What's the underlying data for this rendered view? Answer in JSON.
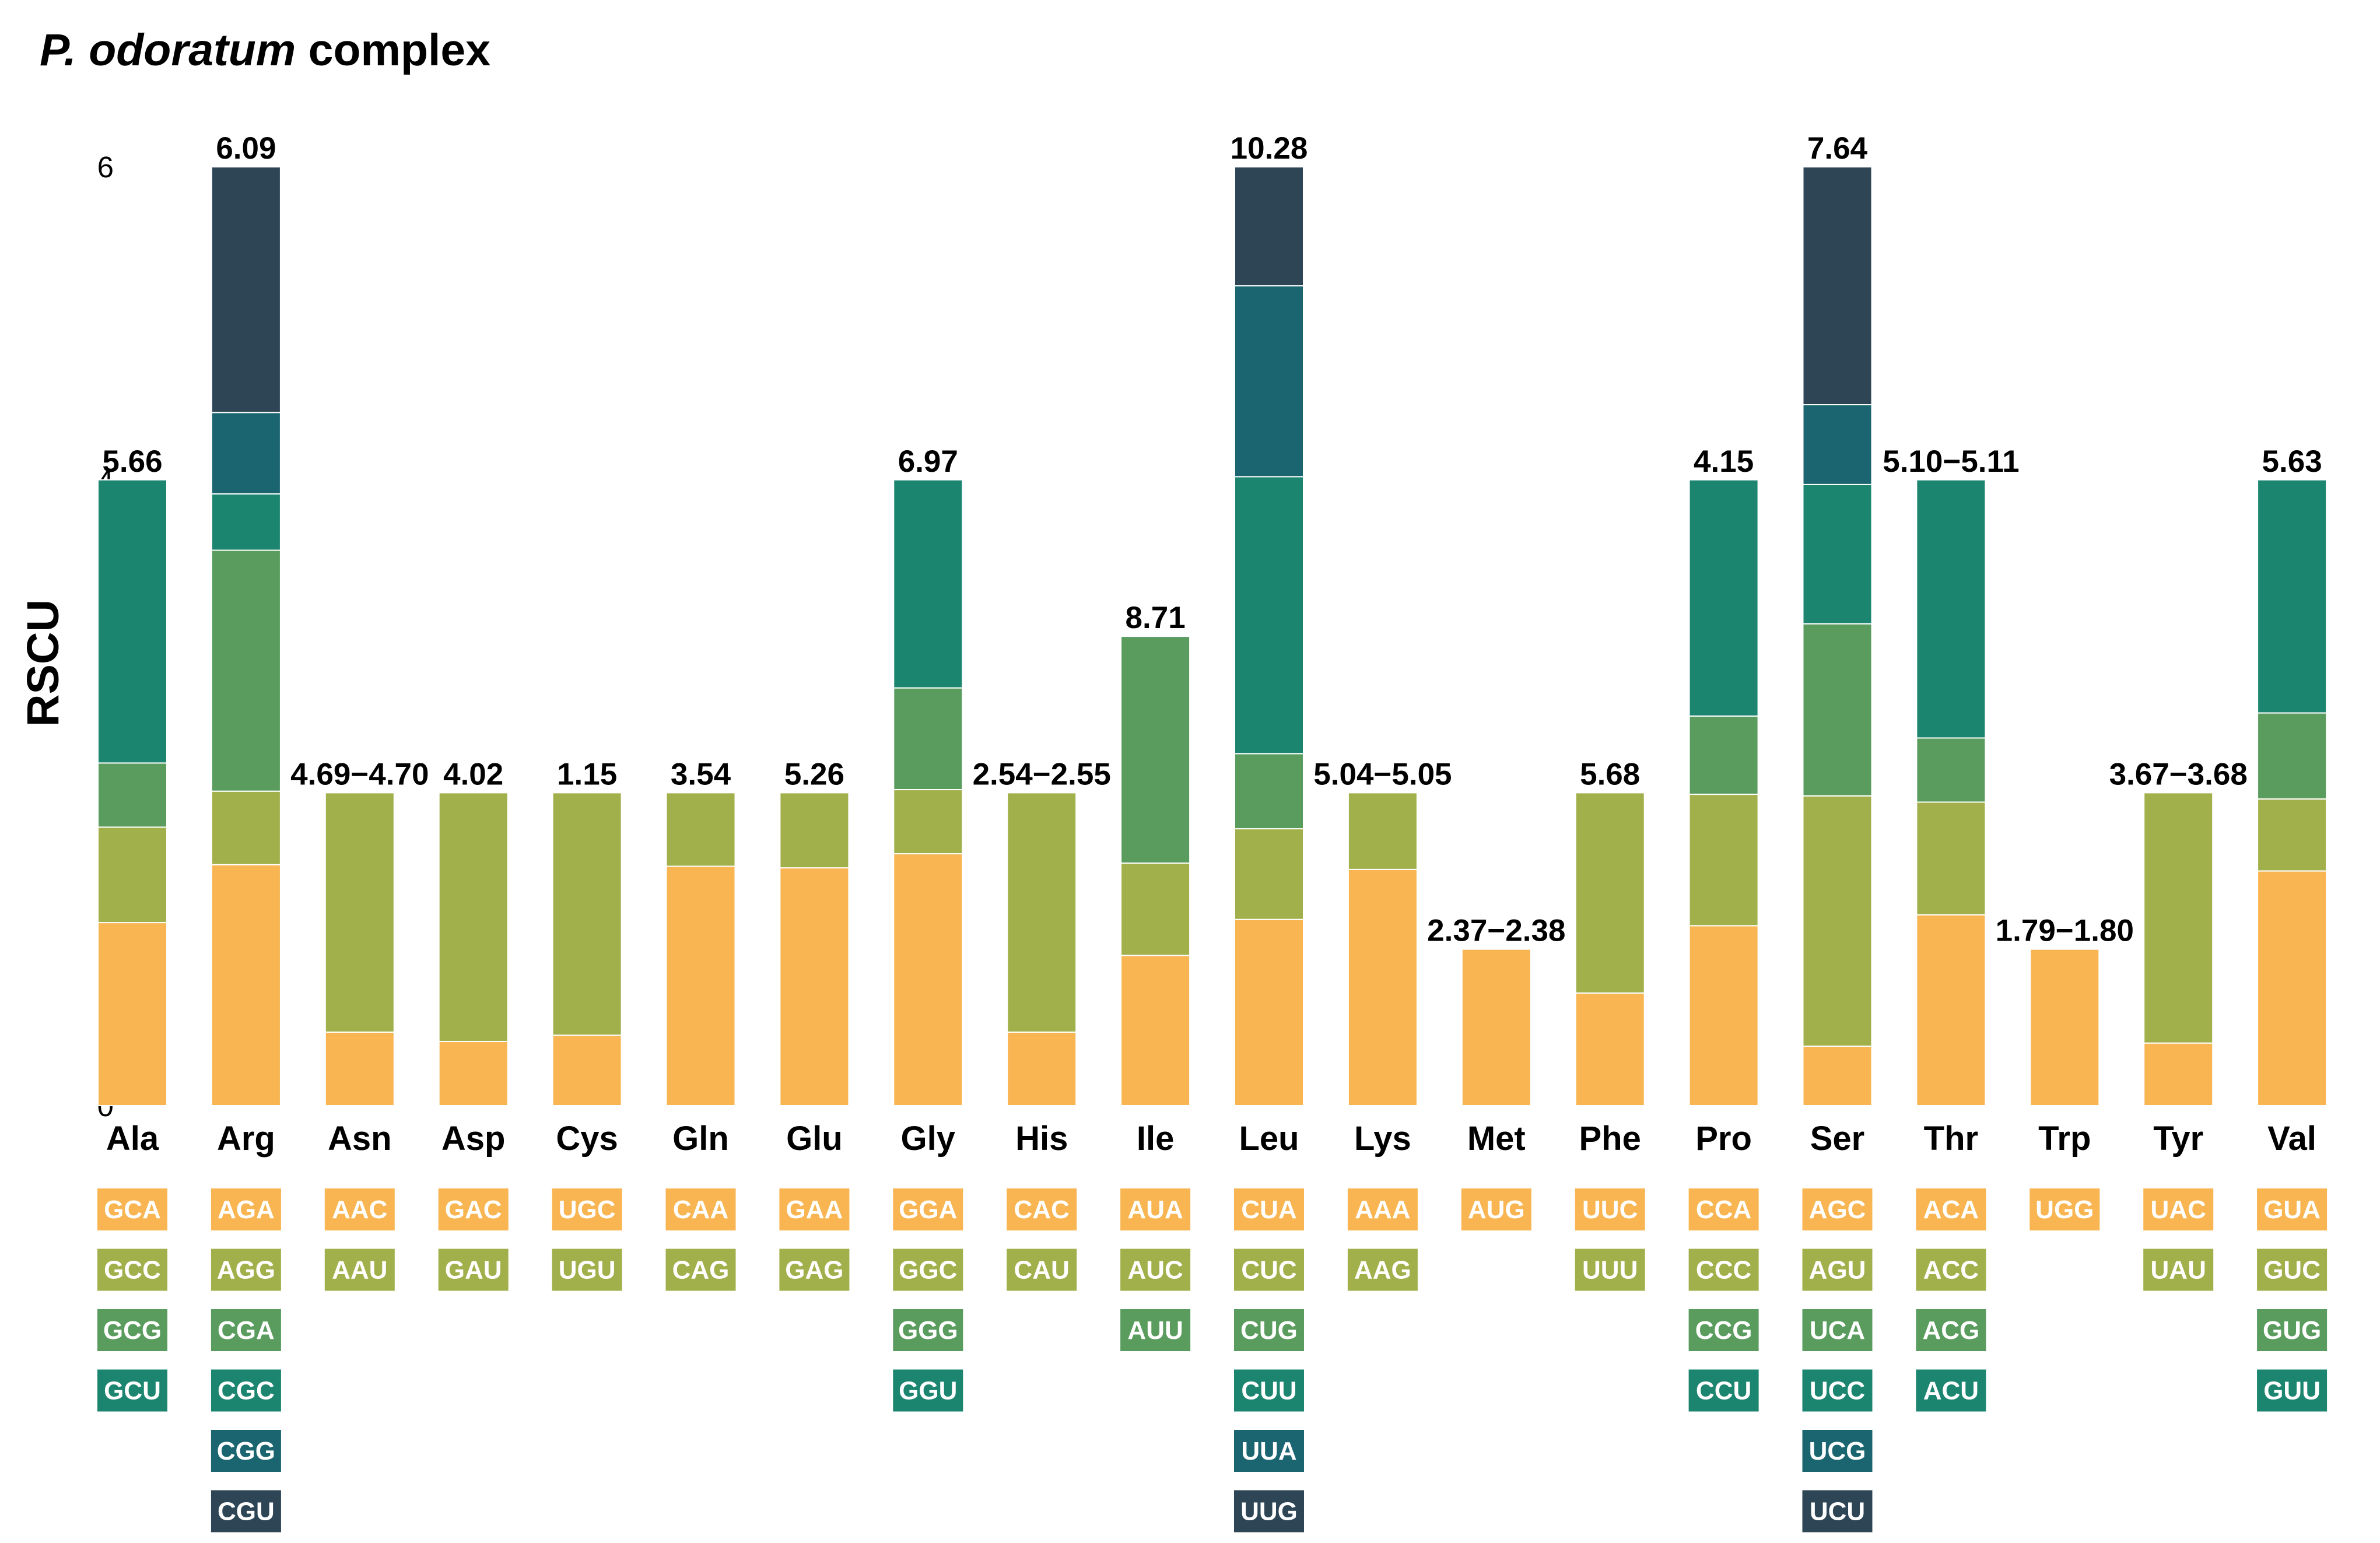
{
  "title": {
    "italic": "P. odoratum",
    "rest": " complex"
  },
  "colors": [
    "#f8b551",
    "#a2b04b",
    "#5a9c5e",
    "#1b8570",
    "#1a6570",
    "#2e4556"
  ],
  "chart_data": {
    "type": "bar",
    "stacked": true,
    "ylabel": "RSCU",
    "ylim": [
      0,
      6
    ],
    "yticks": [
      "0",
      "2",
      "4",
      "6"
    ],
    "grid": false,
    "categories": [
      "Ala",
      "Arg",
      "Asn",
      "Asp",
      "Cys",
      "Gln",
      "Glu",
      "Gly",
      "His",
      "Ile",
      "Leu",
      "Lys",
      "Met",
      "Phe",
      "Pro",
      "Ser",
      "Thr",
      "Trp",
      "Tyr",
      "Val"
    ],
    "labels": [
      "5.66",
      "6.09",
      "4.69−4.70",
      "4.02",
      "1.15",
      "3.54",
      "5.26",
      "6.97",
      "2.54−2.55",
      "8.71",
      "10.28",
      "5.04−5.05",
      "2.37−2.38",
      "5.68",
      "4.15",
      "7.64",
      "5.10−5.11",
      "1.79−1.80",
      "3.67−3.68",
      "5.63"
    ],
    "bars": [
      {
        "aa": "Ala",
        "codons": [
          "GCA",
          "GCC",
          "GCG",
          "GCU"
        ],
        "rscu": [
          1.17,
          0.61,
          0.41,
          1.81
        ]
      },
      {
        "aa": "Arg",
        "codons": [
          "AGA",
          "AGG",
          "CGA",
          "CGC",
          "CGG",
          "CGU"
        ],
        "rscu": [
          1.54,
          0.47,
          1.54,
          0.36,
          0.52,
          1.57
        ]
      },
      {
        "aa": "Asn",
        "codons": [
          "AAC",
          "AAU"
        ],
        "rscu": [
          0.47,
          1.53
        ]
      },
      {
        "aa": "Asp",
        "codons": [
          "GAC",
          "GAU"
        ],
        "rscu": [
          0.41,
          1.59
        ]
      },
      {
        "aa": "Cys",
        "codons": [
          "UGC",
          "UGU"
        ],
        "rscu": [
          0.45,
          1.55
        ]
      },
      {
        "aa": "Gln",
        "codons": [
          "CAA",
          "CAG"
        ],
        "rscu": [
          1.53,
          0.47
        ]
      },
      {
        "aa": "Glu",
        "codons": [
          "GAA",
          "GAG"
        ],
        "rscu": [
          1.52,
          0.48
        ]
      },
      {
        "aa": "Gly",
        "codons": [
          "GGA",
          "GGC",
          "GGG",
          "GGU"
        ],
        "rscu": [
          1.61,
          0.41,
          0.65,
          1.33
        ]
      },
      {
        "aa": "His",
        "codons": [
          "CAC",
          "CAU"
        ],
        "rscu": [
          0.47,
          1.53
        ]
      },
      {
        "aa": "Ile",
        "codons": [
          "AUA",
          "AUC",
          "AUU"
        ],
        "rscu": [
          0.96,
          0.59,
          1.45
        ]
      },
      {
        "aa": "Leu",
        "codons": [
          "CUA",
          "CUC",
          "CUG",
          "CUU",
          "UUA",
          "UUG"
        ],
        "rscu": [
          1.19,
          0.58,
          0.48,
          1.77,
          1.22,
          0.76
        ]
      },
      {
        "aa": "Lys",
        "codons": [
          "AAA",
          "AAG"
        ],
        "rscu": [
          1.51,
          0.49
        ]
      },
      {
        "aa": "Met",
        "codons": [
          "AUG"
        ],
        "rscu": [
          1.0
        ]
      },
      {
        "aa": "Phe",
        "codons": [
          "UUC",
          "UUU"
        ],
        "rscu": [
          0.72,
          1.28
        ]
      },
      {
        "aa": "Pro",
        "codons": [
          "CCA",
          "CCC",
          "CCG",
          "CCU"
        ],
        "rscu": [
          1.15,
          0.84,
          0.5,
          1.51
        ]
      },
      {
        "aa": "Ser",
        "codons": [
          "AGC",
          "AGU",
          "UCA",
          "UCC",
          "UCG",
          "UCU"
        ],
        "rscu": [
          0.38,
          1.6,
          1.1,
          0.89,
          0.51,
          1.52
        ]
      },
      {
        "aa": "Thr",
        "codons": [
          "ACA",
          "ACC",
          "ACG",
          "ACU"
        ],
        "rscu": [
          1.22,
          0.72,
          0.41,
          1.65
        ]
      },
      {
        "aa": "Trp",
        "codons": [
          "UGG"
        ],
        "rscu": [
          1.0
        ]
      },
      {
        "aa": "Tyr",
        "codons": [
          "UAC",
          "UAU"
        ],
        "rscu": [
          0.4,
          1.6
        ]
      },
      {
        "aa": "Val",
        "codons": [
          "GUA",
          "GUC",
          "GUG",
          "GUU"
        ],
        "rscu": [
          1.5,
          0.46,
          0.55,
          1.49
        ]
      }
    ]
  }
}
